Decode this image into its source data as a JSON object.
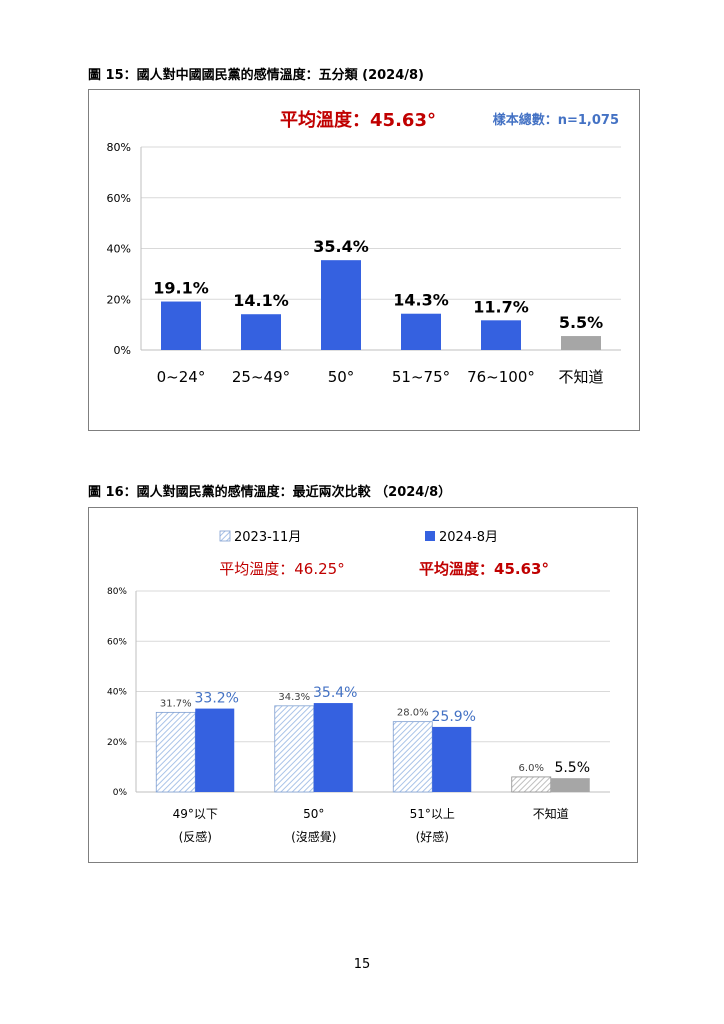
{
  "page_number": "15",
  "colors": {
    "bar_blue": "#3561e0",
    "bar_gray": "#a6a6a6",
    "hatch_blue": "#a9c3e8",
    "hatch_gray": "#bfbfbf",
    "mean_red": "#c00000",
    "sample_blue": "#4472c4",
    "grid": "#d9d9d9"
  },
  "chart_data": [
    {
      "type": "bar",
      "title": "圖 15：國人對中國國民黨的感情溫度：五分類 (2024/8)",
      "subtitle": "平均溫度：45.63°",
      "annotation": "樣本總數：n=1,075",
      "xlabel": "",
      "ylabel": "",
      "ylim": [
        0,
        80
      ],
      "yticks": [
        "0%",
        "20%",
        "40%",
        "60%",
        "80%"
      ],
      "grid": true,
      "categories": [
        "0~24°",
        "25~49°",
        "50°",
        "51~75°",
        "76~100°",
        "不知道"
      ],
      "values": [
        19.1,
        14.1,
        35.4,
        14.3,
        11.7,
        5.5
      ],
      "data_labels": [
        "19.1%",
        "14.1%",
        "35.4%",
        "14.3%",
        "11.7%",
        "5.5%"
      ]
    },
    {
      "type": "bar",
      "title": "圖 16：國人對國民黨的感情溫度：最近兩次比較 （2024/8）",
      "xlabel": "",
      "ylabel": "",
      "ylim": [
        0,
        80
      ],
      "yticks": [
        "0%",
        "20%",
        "40%",
        "60%",
        "80%"
      ],
      "grid": true,
      "legend_position": "top",
      "categories": [
        "49°以下",
        "50°",
        "51°以上",
        "不知道"
      ],
      "category_sublabels": [
        "(反感)",
        "(沒感覺)",
        "(好感)",
        ""
      ],
      "series": [
        {
          "name": "2023-11月",
          "mean_label": "平均溫度：46.25°",
          "values": [
            31.7,
            34.3,
            28.0,
            6.0
          ],
          "data_labels": [
            "31.7%",
            "34.3%",
            "28.0%",
            "6.0%"
          ]
        },
        {
          "name": "2024-8月",
          "mean_label": "平均溫度：45.63°",
          "values": [
            33.2,
            35.4,
            25.9,
            5.5
          ],
          "data_labels": [
            "33.2%",
            "35.4%",
            "25.9%",
            "5.5%"
          ]
        }
      ]
    }
  ]
}
